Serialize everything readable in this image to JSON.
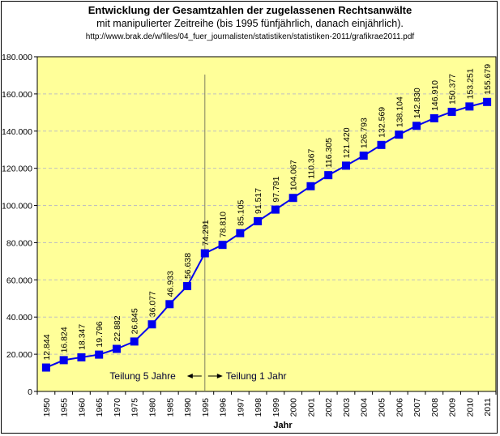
{
  "chart_data": {
    "type": "line",
    "title": "Entwicklung der Gesamtzahlen der zugelassenen Rechtsanwälte",
    "subtitle": "mit manipulierter Zeitreihe (bis 1995 fünfjährlich, danach einjährlich).",
    "source": "http://www.brak.de/w/files/04_fuer_journalisten/statistiken/statistiken-2011/grafikrae2011.pdf",
    "xlabel": "Jahr",
    "ylabel": "",
    "ylim": [
      0,
      180000
    ],
    "yticks": [
      0,
      20000,
      40000,
      60000,
      80000,
      100000,
      120000,
      140000,
      160000,
      180000
    ],
    "ytick_labels": [
      "0",
      "20.000",
      "40.000",
      "60.000",
      "80.000",
      "100.000",
      "120.000",
      "140.000",
      "160.000",
      "180.000"
    ],
    "grid": true,
    "legend": "none",
    "categories": [
      "1950",
      "1955",
      "1960",
      "1965",
      "1970",
      "1975",
      "1980",
      "1985",
      "1990",
      "1995",
      "1996",
      "1997",
      "1998",
      "1999",
      "2000",
      "2001",
      "2002",
      "2003",
      "2004",
      "2005",
      "2006",
      "2007",
      "2008",
      "2009",
      "2010",
      "2011"
    ],
    "series": [
      {
        "name": "Rechtsanwälte",
        "color": "#0000ee",
        "values": [
          12844,
          16824,
          18347,
          19796,
          22882,
          26845,
          36077,
          46933,
          56638,
          74291,
          78810,
          85105,
          91517,
          97791,
          104067,
          110367,
          116305,
          121420,
          126793,
          132569,
          138104,
          142830,
          146910,
          150377,
          153251,
          155679
        ],
        "labels": [
          "12.844",
          "16.824",
          "18.347",
          "19.796",
          "22.882",
          "26.845",
          "36.077",
          "46.933",
          "56.638",
          "74.291",
          "78.810",
          "85.105",
          "91.517",
          "97.791",
          "104.067",
          "110.367",
          "116.305",
          "121.420",
          "126.793",
          "132.569",
          "138.104",
          "142.830",
          "146.910",
          "150.377",
          "153.251",
          "155.679"
        ]
      }
    ],
    "annotations": {
      "divider_after_category": "1995",
      "left_text": "Teilung 5 Jahre",
      "right_text": "Teilung 1 Jahr"
    },
    "colors": {
      "plot_background": "#ffff99",
      "gridline": "#c0c0c0",
      "divider": "#808060"
    }
  }
}
